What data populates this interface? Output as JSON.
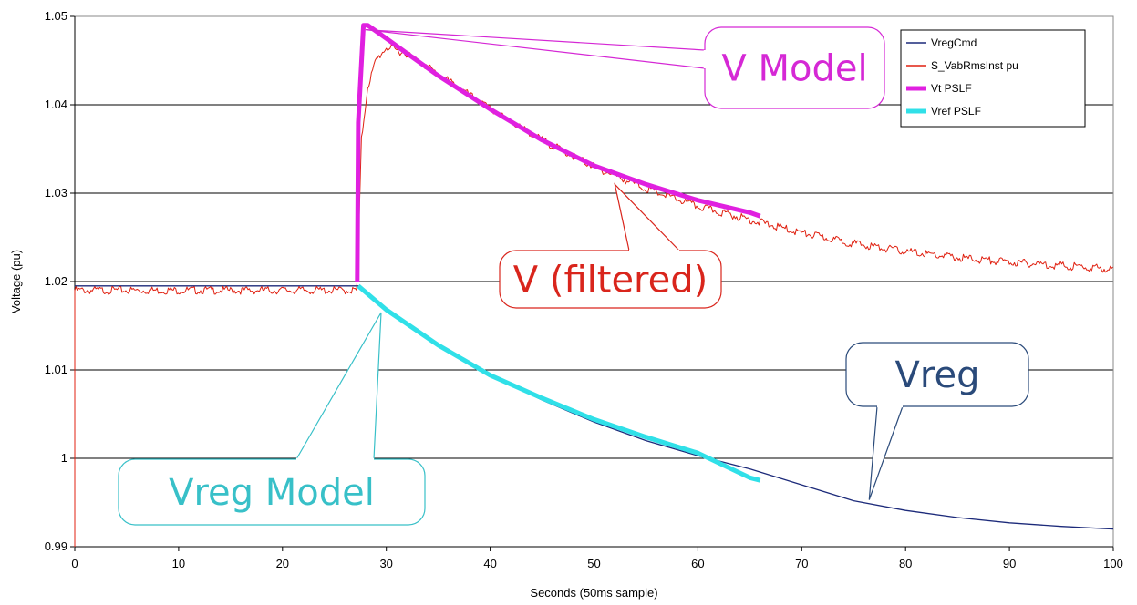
{
  "chart_data": {
    "type": "line",
    "title": "",
    "xlabel": "Seconds (50ms sample)",
    "ylabel": "Voltage (pu)",
    "xlim": [
      0,
      100
    ],
    "ylim": [
      0.99,
      1.05
    ],
    "x_ticks": [
      "0",
      "10",
      "20",
      "30",
      "40",
      "50",
      "60",
      "70",
      "80",
      "90",
      "100"
    ],
    "y_ticks": [
      "0.99",
      "1",
      "1.01",
      "1.02",
      "1.03",
      "1.04",
      "1.05"
    ],
    "grid": "horizontal",
    "legend_position": "top-right",
    "series": [
      {
        "name": "VregCmd",
        "color": "#1c2a7a",
        "x": [
          0,
          27.3,
          30,
          35,
          40,
          45,
          50,
          55,
          60,
          65,
          70,
          75,
          80,
          85,
          90,
          95,
          100
        ],
        "y": [
          1.0195,
          1.0195,
          1.0168,
          1.0128,
          1.0094,
          1.0066,
          1.0041,
          1.002,
          1.0003,
          0.9988,
          0.997,
          0.9952,
          0.9941,
          0.9933,
          0.9927,
          0.9923,
          0.992
        ]
      },
      {
        "name": "S_VabRmsInst pu",
        "color": "#e02010",
        "x": [
          0,
          27.2,
          27.6,
          28.2,
          29,
          30,
          32,
          35,
          40,
          45,
          50,
          55,
          60,
          65,
          70,
          75,
          80,
          85,
          90,
          95,
          100
        ],
        "y": [
          1.019,
          1.019,
          1.036,
          1.042,
          1.045,
          1.0465,
          1.0458,
          1.0435,
          1.0395,
          1.036,
          1.033,
          1.0305,
          1.0285,
          1.027,
          1.0255,
          1.0243,
          1.0234,
          1.0227,
          1.0222,
          1.0218,
          1.0214
        ]
      },
      {
        "name": "Vt PSLF",
        "color": "#e020e0",
        "x": [
          27.2,
          27.3,
          27.8,
          28.2,
          30,
          32,
          35,
          40,
          45,
          50,
          55,
          60,
          65,
          66
        ],
        "y": [
          1.02,
          1.038,
          1.049,
          1.049,
          1.0475,
          1.0458,
          1.0433,
          1.0395,
          1.036,
          1.0331,
          1.031,
          1.0292,
          1.0278,
          1.0274
        ]
      },
      {
        "name": "Vref PSLF",
        "color": "#30e0e8",
        "x": [
          27.3,
          30,
          35,
          40,
          45,
          50,
          55,
          60,
          65,
          66
        ],
        "y": [
          1.0195,
          1.0168,
          1.0128,
          1.0094,
          1.0068,
          1.0044,
          1.0024,
          1.0006,
          0.9978,
          0.9975
        ]
      }
    ],
    "annotations": [
      {
        "text": "V Model",
        "color": "#d528d5",
        "target": [
          28,
          1.0485
        ]
      },
      {
        "text": "V (filtered)",
        "color": "#d9251c",
        "target": [
          52,
          1.031
        ]
      },
      {
        "text": "Vreg",
        "color": "#2a4a7a",
        "target": [
          76.5,
          0.9953
        ]
      },
      {
        "text": "Vreg Model",
        "color": "#38c0c8",
        "target": [
          29.5,
          1.0165
        ]
      }
    ]
  }
}
